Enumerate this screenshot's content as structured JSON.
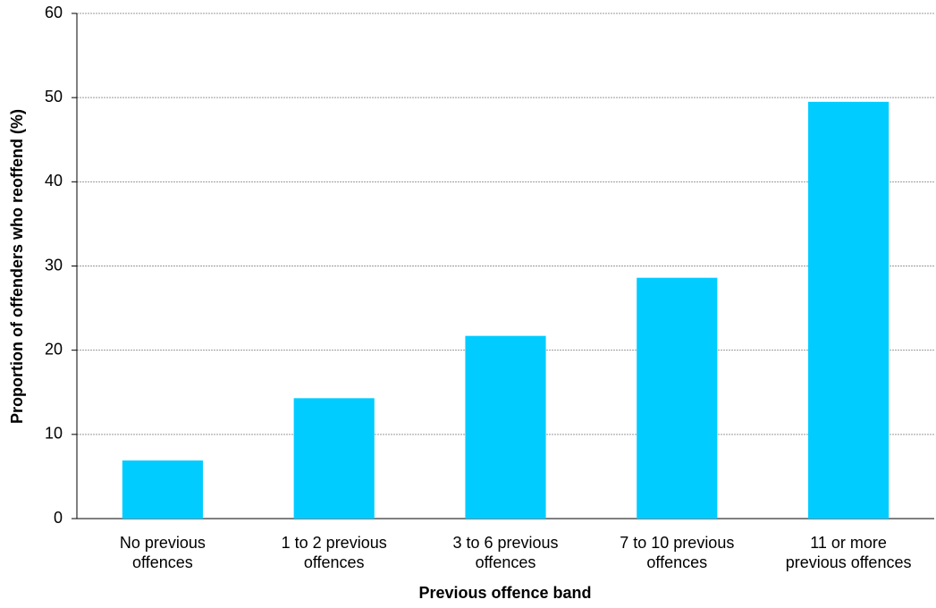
{
  "chart_data": {
    "type": "bar",
    "x_label": "Previous offence band",
    "y_label": "Proportion of offenders who reoffend (%)",
    "categories": [
      "No previous\noffences",
      "1 to 2 previous\noffences",
      "3 to 6 previous\noffences",
      "7 to 10 previous\noffences",
      "11 or more\nprevious offences"
    ],
    "values": [
      6.9,
      14.3,
      21.7,
      28.6,
      49.5
    ],
    "color": "#00ccff",
    "ylim": [
      0,
      60
    ],
    "yticks": [
      0,
      10,
      20,
      30,
      40,
      50,
      60
    ],
    "grid": true
  }
}
